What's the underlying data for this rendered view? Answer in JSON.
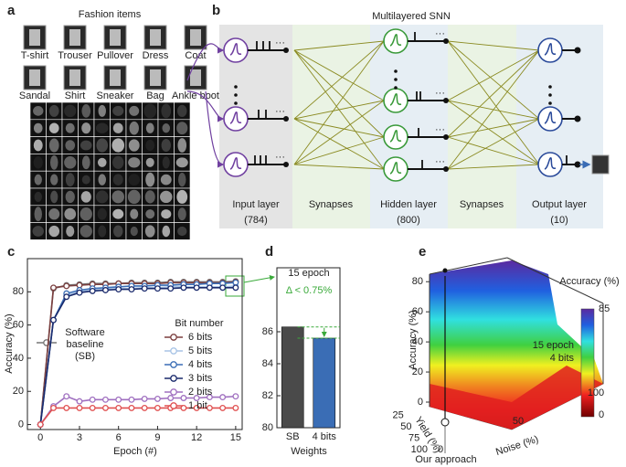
{
  "panel_a": {
    "label": "a",
    "title": "Fashion items",
    "items": [
      "T-shirt",
      "Trouser",
      "Pullover",
      "Dress",
      "Coat",
      "Sandal",
      "Shirt",
      "Sneaker",
      "Bag",
      "Ankle boot"
    ]
  },
  "panel_b": {
    "label": "b",
    "title": "Multilayered SNN",
    "layers": [
      {
        "name": "Input layer",
        "size": "(784)"
      },
      {
        "name": "Synapses"
      },
      {
        "name": "Hidden layer",
        "size": "(800)"
      },
      {
        "name": "Synapses"
      },
      {
        "name": "Output layer",
        "size": "(10)"
      }
    ]
  },
  "chart_data": [
    {
      "label": "c",
      "type": "line",
      "xlabel": "Epoch (#)",
      "ylabel": "Accuracy (%)",
      "x": [
        0,
        1,
        2,
        3,
        4,
        5,
        6,
        7,
        8,
        9,
        10,
        11,
        12,
        13,
        14,
        15
      ],
      "xlim": [
        -1,
        15.5
      ],
      "ylim": [
        -3,
        100
      ],
      "xticks": [
        0,
        3,
        6,
        9,
        12,
        15
      ],
      "yticks": [
        0,
        20,
        40,
        60,
        80
      ],
      "legend_title": "Bit number",
      "series": [
        {
          "name": "Software baseline (SB)",
          "color": "#777777",
          "values": [
            0,
            82,
            84,
            84.5,
            85,
            85,
            85,
            85.5,
            85.5,
            85.5,
            86,
            86,
            86,
            86,
            86,
            86.3
          ]
        },
        {
          "name": "6 bits",
          "color": "#7b3f3f",
          "values": [
            0,
            82.5,
            83.5,
            84,
            84.5,
            84.5,
            85,
            85,
            85,
            85,
            85.5,
            85.5,
            85.5,
            85.5,
            85.5,
            86
          ]
        },
        {
          "name": "5 bits",
          "color": "#a8c4e6",
          "values": [
            0,
            63,
            78,
            80,
            81,
            81.5,
            82,
            82,
            82.5,
            82.5,
            83,
            83,
            83,
            83,
            83,
            83.5
          ]
        },
        {
          "name": "4 bits",
          "color": "#3a6db5",
          "values": [
            0,
            63,
            79,
            81,
            82,
            82.5,
            83,
            83.5,
            83.5,
            84,
            84,
            84.5,
            84.5,
            85,
            85,
            85.6
          ]
        },
        {
          "name": "3 bits",
          "color": "#1a2a6c",
          "values": [
            0,
            63,
            77,
            79.5,
            80.5,
            81,
            81.5,
            81.5,
            82,
            82,
            82,
            82.5,
            82.5,
            82.5,
            82.5,
            82.5
          ]
        },
        {
          "name": "2 bits",
          "color": "#a070c0",
          "values": [
            0,
            11,
            17,
            14,
            15,
            15,
            15,
            15,
            15.5,
            15.5,
            16,
            16,
            16,
            16.5,
            16.5,
            17
          ]
        },
        {
          "name": "1 bit",
          "color": "#e05050",
          "values": [
            0,
            10,
            10,
            10,
            10,
            10,
            10,
            10,
            10,
            10,
            10,
            10,
            10,
            10,
            10,
            10
          ]
        }
      ]
    },
    {
      "label": "d",
      "type": "bar",
      "xlabel": "Weights",
      "categories": [
        "SB",
        "4 bits"
      ],
      "values": [
        86.3,
        85.6
      ],
      "colors": [
        "#4a4a4a",
        "#3a6db5"
      ],
      "ylim": [
        80,
        90
      ],
      "yticks": [
        80,
        82,
        84,
        86
      ],
      "annotations": [
        "15 epoch",
        "Δ < 0.75%"
      ]
    }
  ],
  "panel_e": {
    "label": "e",
    "zlabel": "Accuracy (%)",
    "zticks": [
      0,
      20,
      40,
      60,
      80
    ],
    "ylabel": "Yield (%)",
    "yticks": [
      100,
      75,
      50,
      25
    ],
    "xlabel": "Noise (%)",
    "xticks": [
      0,
      50,
      100
    ],
    "colorbar": {
      "label": "Accuracy (%)",
      "ticks": [
        0,
        85
      ]
    },
    "annotation": [
      "15 epoch",
      "4 bits"
    ],
    "marker_label": "Our approach"
  }
}
